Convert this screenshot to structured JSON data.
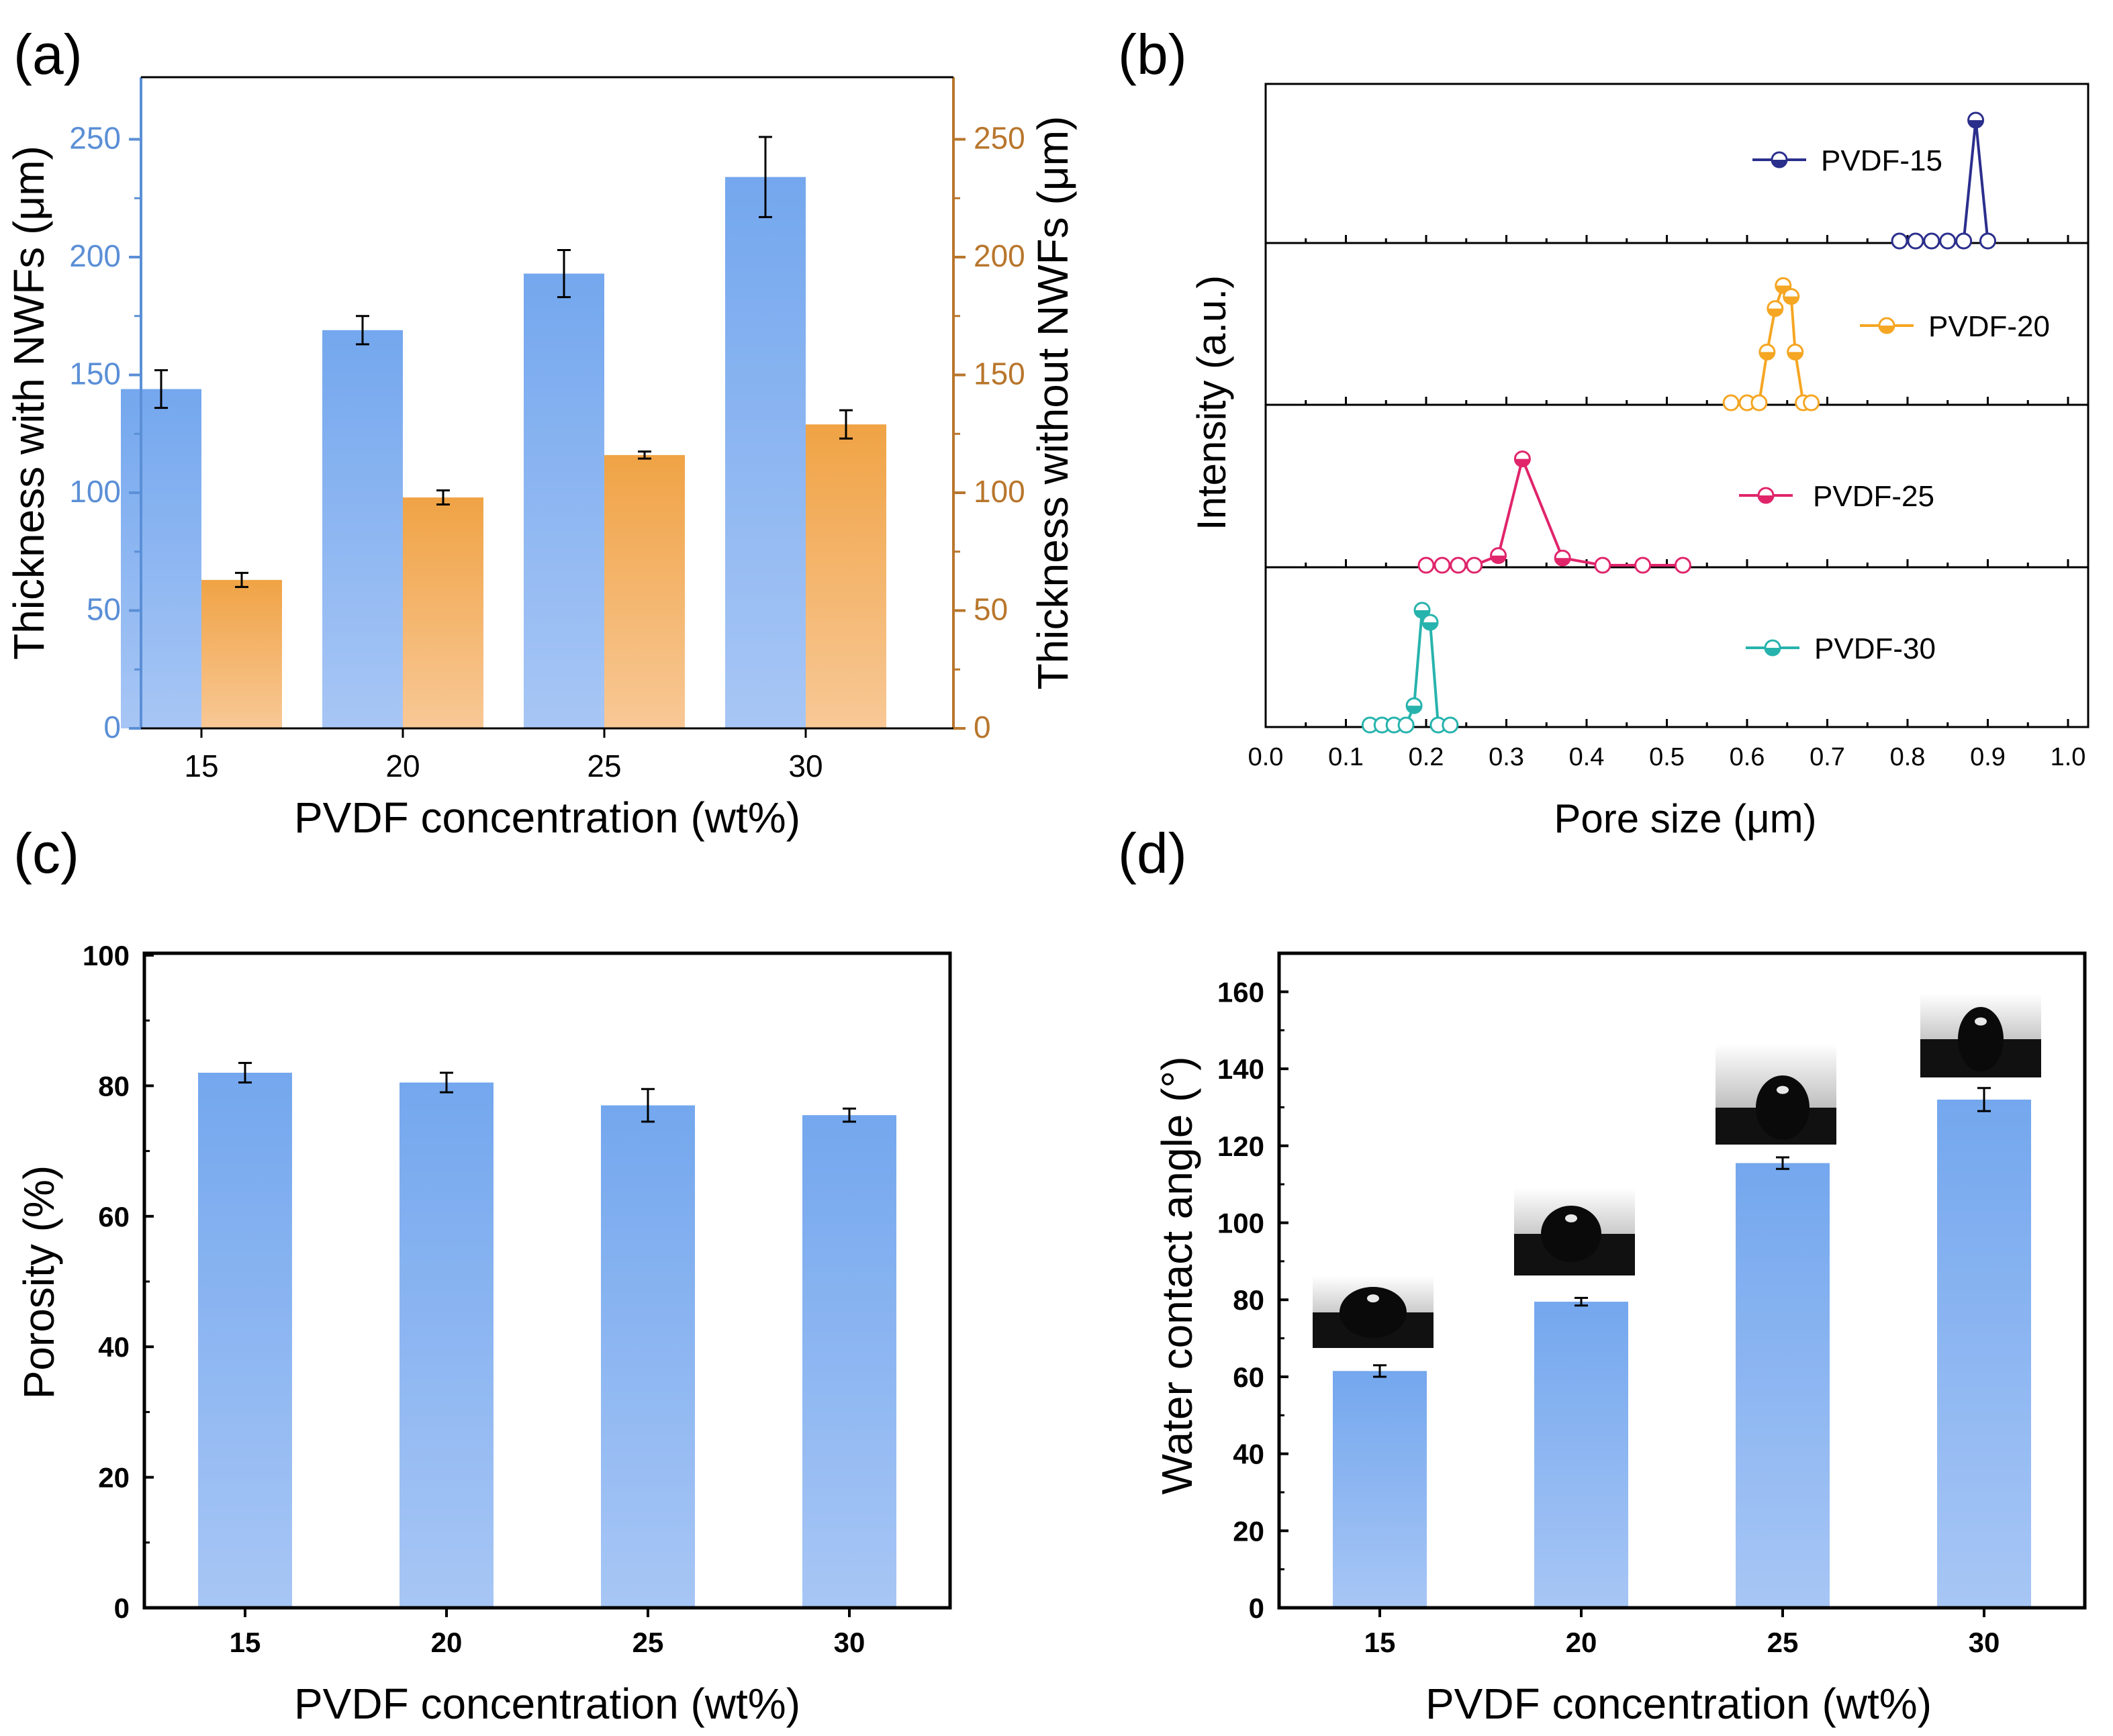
{
  "colors": {
    "blue_top": "#74a7ee",
    "blue_bottom": "#a7c6f5",
    "orange_top": "#f0a345",
    "orange_bottom": "#f8c896",
    "axis_blue": "#5b8fd6",
    "axis_orange": "#b8762c",
    "series_15": "#2b2f8c",
    "series_20": "#f5a623",
    "series_25": "#e0256b",
    "series_30": "#27b3ad",
    "black": "#000000"
  },
  "chart_data": [
    {
      "panel": "a",
      "type": "bar",
      "panel_label": "(a)",
      "categories": [
        "15",
        "20",
        "25",
        "30"
      ],
      "xlabel": "PVDF concentration (wt%)",
      "ylabel": "Thickness with NWFs (μm)",
      "ylabel_right": "Thickness without NWFs (μm)",
      "ylim": [
        0,
        275
      ],
      "yticks": [
        "0",
        "50",
        "100",
        "150",
        "200",
        "250"
      ],
      "series": [
        {
          "name": "Thickness with NWFs",
          "axis": "left",
          "values": [
            144,
            169,
            193,
            234
          ],
          "errors": [
            8,
            6,
            10,
            17
          ]
        },
        {
          "name": "Thickness without NWFs",
          "axis": "right",
          "values": [
            63,
            98,
            116,
            129
          ],
          "errors": [
            3,
            3,
            1.5,
            6
          ]
        }
      ]
    },
    {
      "panel": "b",
      "type": "line",
      "panel_label": "(b)",
      "xlabel": "Pore size (μm)",
      "ylabel": "Intensity (a.u.)",
      "xlim": [
        0.0,
        1.0
      ],
      "xticks": [
        "0.0",
        "0.1",
        "0.2",
        "0.3",
        "0.4",
        "0.5",
        "0.6",
        "0.7",
        "0.8",
        "0.9",
        "1.0"
      ],
      "series": [
        {
          "name": "PVDF-15",
          "x": [
            0.79,
            0.81,
            0.83,
            0.85,
            0.87,
            0.885,
            0.9
          ],
          "y": [
            0,
            0,
            0,
            0,
            0,
            1.0,
            0
          ],
          "filled": [
            false,
            false,
            false,
            false,
            false,
            true,
            false
          ]
        },
        {
          "name": "PVDF-20",
          "x": [
            0.58,
            0.6,
            0.615,
            0.625,
            0.635,
            0.645,
            0.655,
            0.66,
            0.67,
            0.68
          ],
          "y": [
            0,
            0,
            0,
            0.42,
            0.78,
            0.97,
            0.88,
            0.42,
            0,
            0
          ],
          "filled": [
            false,
            false,
            false,
            true,
            true,
            true,
            true,
            true,
            false,
            false
          ]
        },
        {
          "name": "PVDF-25",
          "x": [
            0.2,
            0.22,
            0.24,
            0.26,
            0.29,
            0.32,
            0.37,
            0.42,
            0.47,
            0.52
          ],
          "y": [
            0,
            0,
            0,
            0,
            0.08,
            0.88,
            0.06,
            0,
            0,
            0
          ],
          "filled": [
            false,
            false,
            false,
            false,
            true,
            true,
            true,
            false,
            false,
            false
          ]
        },
        {
          "name": "PVDF-30",
          "x": [
            0.13,
            0.145,
            0.16,
            0.175,
            0.185,
            0.195,
            0.205,
            0.215,
            0.23
          ],
          "y": [
            0,
            0,
            0,
            0,
            0.16,
            0.95,
            0.85,
            0,
            0
          ],
          "filled": [
            false,
            false,
            false,
            false,
            true,
            true,
            true,
            false,
            false
          ]
        }
      ]
    },
    {
      "panel": "c",
      "type": "bar",
      "panel_label": "(c)",
      "categories": [
        "15",
        "20",
        "25",
        "30"
      ],
      "xlabel": "PVDF concentration (wt%)",
      "ylabel": "Porosity (%)",
      "ylim": [
        0,
        100
      ],
      "yticks": [
        "0",
        "20",
        "40",
        "60",
        "80",
        "100"
      ],
      "values": [
        82,
        80.5,
        77,
        75.5
      ],
      "errors": [
        1.5,
        1.5,
        2.5,
        1
      ]
    },
    {
      "panel": "d",
      "type": "bar",
      "panel_label": "(d)",
      "categories": [
        "15",
        "20",
        "25",
        "30"
      ],
      "xlabel": "PVDF concentration (wt%)",
      "ylabel": "Water contact angle (°)",
      "ylim": [
        0,
        170
      ],
      "yticks": [
        "0",
        "20",
        "40",
        "60",
        "80",
        "100",
        "120",
        "140",
        "160"
      ],
      "values": [
        61.5,
        79.5,
        115.5,
        132
      ],
      "errors": [
        1.5,
        1,
        1.5,
        3
      ],
      "insets": [
        "droplet-photo",
        "droplet-photo",
        "droplet-photo",
        "droplet-photo"
      ]
    }
  ]
}
